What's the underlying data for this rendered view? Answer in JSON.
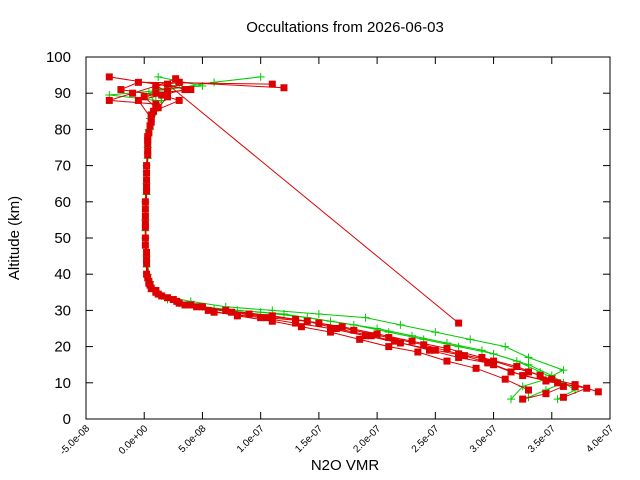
{
  "chart_data": {
    "type": "line",
    "title": "Occultations from 2026-06-03",
    "xlabel": "N2O VMR",
    "ylabel": "Altitude (km)",
    "xlim": [
      -5e-08,
      4e-07
    ],
    "ylim": [
      0,
      100
    ],
    "xticks": [
      "-5.0e-08",
      "0.0e+00",
      "5.0e-08",
      "1.0e-07",
      "1.5e-07",
      "2.0e-07",
      "2.5e-07",
      "3.0e-07",
      "3.5e-07",
      "4.0e-07"
    ],
    "xtick_values": [
      -5e-08,
      0,
      5e-08,
      1e-07,
      1.5e-07,
      2e-07,
      2.5e-07,
      3e-07,
      3.5e-07,
      4e-07
    ],
    "yticks": [
      "0",
      "10",
      "20",
      "30",
      "40",
      "50",
      "60",
      "70",
      "80",
      "90",
      "100"
    ],
    "ytick_values": [
      0,
      10,
      20,
      30,
      40,
      50,
      60,
      70,
      80,
      90,
      100
    ],
    "grid": false,
    "legend": "none",
    "series": [
      {
        "color": "#00cc00",
        "marker": "plus",
        "points": [
          [
            3.3e-07,
            6
          ],
          [
            3.45e-07,
            8
          ],
          [
            3.6e-07,
            10
          ],
          [
            3.4e-07,
            13
          ],
          [
            3.2e-07,
            16
          ],
          [
            2.9e-07,
            19
          ],
          [
            2.6e-07,
            21
          ],
          [
            2.3e-07,
            23
          ],
          [
            2e-07,
            25
          ],
          [
            1.6e-07,
            27
          ],
          [
            1.2e-07,
            29
          ],
          [
            8e-08,
            30
          ],
          [
            5e-08,
            31
          ],
          [
            2e-08,
            33
          ],
          [
            8e-09,
            36
          ],
          [
            3e-09,
            40
          ],
          [
            1e-09,
            50
          ],
          [
            1e-09,
            60
          ],
          [
            2e-09,
            70
          ],
          [
            4e-09,
            80
          ],
          [
            1e-08,
            88
          ],
          [
            -3e-08,
            89.5
          ],
          [
            2e-08,
            91
          ],
          [
            6e-08,
            93
          ],
          [
            1e-07,
            94.5
          ]
        ]
      },
      {
        "color": "#00cc00",
        "marker": "plus",
        "points": [
          [
            3.55e-07,
            5.5
          ],
          [
            3.7e-07,
            8
          ],
          [
            3.5e-07,
            12
          ],
          [
            3.3e-07,
            15
          ],
          [
            3e-07,
            18
          ],
          [
            2.7e-07,
            20
          ],
          [
            2.4e-07,
            22
          ],
          [
            2.1e-07,
            24
          ],
          [
            1.8e-07,
            26
          ],
          [
            1.4e-07,
            28
          ],
          [
            1e-07,
            29.5
          ],
          [
            6e-08,
            30.5
          ],
          [
            3e-08,
            32
          ],
          [
            1.2e-08,
            35
          ],
          [
            5e-09,
            38
          ],
          [
            2e-09,
            45
          ],
          [
            1e-09,
            55
          ],
          [
            2e-09,
            65
          ],
          [
            3e-09,
            75
          ],
          [
            5e-09,
            83
          ],
          [
            1.5e-08,
            88
          ],
          [
            1e-08,
            91
          ],
          [
            5e-08,
            92
          ],
          [
            1.2e-08,
            94.5
          ]
        ]
      },
      {
        "color": "#00cc00",
        "marker": "plus",
        "points": [
          [
            3.15e-07,
            5.5
          ],
          [
            3.25e-07,
            9
          ],
          [
            3.45e-07,
            11
          ],
          [
            3.6e-07,
            13.5
          ],
          [
            3.3e-07,
            17
          ],
          [
            3.1e-07,
            20
          ],
          [
            2.8e-07,
            22
          ],
          [
            2.5e-07,
            24
          ],
          [
            2.2e-07,
            26
          ],
          [
            1.9e-07,
            28
          ],
          [
            1.5e-07,
            29
          ],
          [
            1.1e-07,
            30
          ],
          [
            7e-08,
            31
          ],
          [
            4e-08,
            32.5
          ],
          [
            1.5e-08,
            34
          ],
          [
            6e-09,
            37
          ],
          [
            2e-09,
            42
          ],
          [
            1e-09,
            52
          ],
          [
            2e-09,
            62
          ],
          [
            3e-09,
            72
          ],
          [
            5e-09,
            80
          ],
          [
            1.2e-08,
            86
          ],
          [
            4e-09,
            90
          ],
          [
            3e-08,
            92.5
          ]
        ]
      },
      {
        "color": "#dd0000",
        "marker": "square",
        "points": [
          [
            3.9e-07,
            7.5
          ],
          [
            3.7e-07,
            9.5
          ],
          [
            3.5e-07,
            11
          ],
          [
            3.3e-07,
            13
          ],
          [
            3e-07,
            16
          ],
          [
            2.7e-07,
            18
          ],
          [
            2.4e-07,
            20.5
          ],
          [
            2.1e-07,
            22.5
          ],
          [
            1.8e-07,
            24.5
          ],
          [
            1.5e-07,
            26.5
          ],
          [
            1.1e-07,
            28.5
          ],
          [
            7e-08,
            30
          ],
          [
            4e-08,
            31.5
          ],
          [
            2e-08,
            33.5
          ],
          [
            6e-09,
            36
          ],
          [
            2e-09,
            40
          ],
          [
            1e-09,
            50
          ],
          [
            1e-09,
            60
          ],
          [
            2e-09,
            70
          ],
          [
            3e-09,
            78
          ],
          [
            6e-09,
            84
          ],
          [
            1e-08,
            87
          ],
          [
            -3e-08,
            88
          ],
          [
            -1e-08,
            90
          ],
          [
            1e-08,
            92
          ],
          [
            3e-08,
            93
          ],
          [
            1.2e-07,
            91.5
          ]
        ]
      },
      {
        "color": "#dd0000",
        "marker": "square",
        "points": [
          [
            3.25e-07,
            5.5
          ],
          [
            3.45e-07,
            7
          ],
          [
            3.6e-07,
            9
          ],
          [
            3.4e-07,
            12
          ],
          [
            3.2e-07,
            14.5
          ],
          [
            2.9e-07,
            17
          ],
          [
            2.6e-07,
            19.5
          ],
          [
            2.3e-07,
            21.5
          ],
          [
            2e-07,
            23.5
          ],
          [
            1.7e-07,
            25.5
          ],
          [
            1.3e-07,
            27.5
          ],
          [
            9e-08,
            29
          ],
          [
            5e-08,
            31
          ],
          [
            2.5e-08,
            33
          ],
          [
            1e-08,
            35
          ],
          [
            4e-09,
            38
          ],
          [
            2e-09,
            44
          ],
          [
            1e-09,
            54
          ],
          [
            2e-09,
            64
          ],
          [
            3e-09,
            74
          ],
          [
            5e-09,
            81
          ],
          [
            1.2e-08,
            86
          ],
          [
            2e-08,
            89
          ],
          [
            -2e-08,
            91
          ],
          [
            -5e-09,
            93
          ],
          [
            1.1e-07,
            92.5
          ]
        ]
      },
      {
        "color": "#dd0000",
        "marker": "square",
        "points": [
          [
            3.6e-07,
            6
          ],
          [
            3.8e-07,
            8.5
          ],
          [
            3.55e-07,
            10
          ],
          [
            3.25e-07,
            12
          ],
          [
            3e-07,
            15
          ],
          [
            2.75e-07,
            17.5
          ],
          [
            2.5e-07,
            19
          ],
          [
            2.2e-07,
            21
          ],
          [
            1.9e-07,
            23
          ],
          [
            1.6e-07,
            25
          ],
          [
            1.3e-07,
            26.5
          ],
          [
            1e-07,
            28
          ],
          [
            6e-08,
            29.5
          ],
          [
            3.5e-08,
            31.5
          ],
          [
            1.5e-08,
            34
          ],
          [
            5e-09,
            37
          ],
          [
            2e-09,
            43
          ],
          [
            1e-09,
            53
          ],
          [
            2e-09,
            63
          ],
          [
            3e-09,
            73
          ],
          [
            4e-09,
            79
          ],
          [
            8e-09,
            85
          ],
          [
            3e-08,
            88
          ],
          [
            1e-08,
            90
          ],
          [
            4e-08,
            91
          ],
          [
            -3e-08,
            94.5
          ]
        ]
      },
      {
        "color": "#dd0000",
        "marker": "square",
        "points": [
          [
            3.3e-07,
            8
          ],
          [
            3.1e-07,
            11
          ],
          [
            2.85e-07,
            14
          ],
          [
            2.6e-07,
            16
          ],
          [
            2.35e-07,
            18.5
          ],
          [
            2.1e-07,
            20
          ],
          [
            1.85e-07,
            22
          ],
          [
            1.6e-07,
            24
          ],
          [
            1.35e-07,
            25.5
          ],
          [
            1.1e-07,
            27
          ],
          [
            8e-08,
            28.5
          ],
          [
            5.5e-08,
            30
          ],
          [
            3e-08,
            32
          ],
          [
            1.2e-08,
            34.5
          ],
          [
            4e-09,
            37.5
          ],
          [
            2e-09,
            46
          ],
          [
            1e-09,
            56
          ],
          [
            2e-09,
            66
          ],
          [
            3e-09,
            76
          ],
          [
            6e-09,
            82
          ],
          [
            1e-08,
            86
          ],
          [
            0,
            89
          ],
          [
            2e-08,
            90.5
          ],
          [
            1e-08,
            92
          ],
          [
            2.7e-08,
            94
          ],
          [
            3e-08,
            93
          ]
        ]
      },
      {
        "color": "#dd0000",
        "marker": "square",
        "points": [
          [
            3.7e-07,
            9
          ],
          [
            3.45e-07,
            10.5
          ],
          [
            3.15e-07,
            13
          ],
          [
            2.95e-07,
            15.5
          ],
          [
            2.7e-07,
            17
          ],
          [
            2.45e-07,
            19
          ],
          [
            2.15e-07,
            21.5
          ],
          [
            1.95e-07,
            23
          ],
          [
            1.65e-07,
            25
          ],
          [
            1.4e-07,
            27
          ],
          [
            1.05e-07,
            28
          ],
          [
            7.5e-08,
            29.5
          ],
          [
            4.5e-08,
            31
          ],
          [
            2.8e-08,
            32.5
          ],
          [
            1e-08,
            35.5
          ],
          [
            3e-09,
            39
          ],
          [
            1e-09,
            48
          ],
          [
            1e-09,
            58
          ],
          [
            2e-09,
            68
          ],
          [
            3e-09,
            77
          ],
          [
            6e-09,
            83
          ],
          [
            -5e-09,
            88
          ],
          [
            1.5e-08,
            89.5
          ],
          [
            3.5e-08,
            91
          ],
          [
            2e-08,
            92.5
          ],
          [
            2.7e-07,
            26.5
          ]
        ]
      }
    ]
  }
}
